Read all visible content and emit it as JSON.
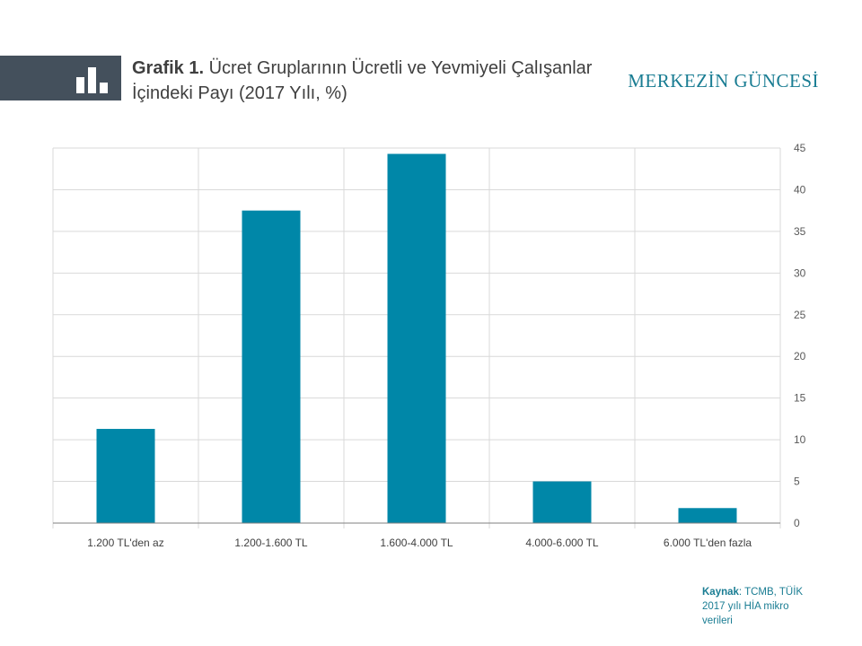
{
  "header": {
    "title_lead": "Grafik 1.",
    "title_rest": "Ücret Gruplarının  Ücretli ve Yevmiyeli Çalışanlar İçindeki Payı (2017 Yılı, %)",
    "brand": "MERKEZİN GÜNCESİ",
    "icon": "bar-chart-icon"
  },
  "source": {
    "label": "Kaynak",
    "text": ": TCMB, TÜİK 2017 yılı HİA mikro verileri"
  },
  "colors": {
    "bar": "#0087a8",
    "header_block": "#44505c",
    "brand": "#1a7d93"
  },
  "chart_data": {
    "type": "bar",
    "categories": [
      "1.200 TL'den az",
      "1.200-1.600 TL",
      "1.600-4.000 TL",
      "4.000-6.000 TL",
      "6.000 TL'den fazla"
    ],
    "values": [
      11.3,
      37.5,
      44.3,
      5.0,
      1.8
    ],
    "title": "",
    "xlabel": "",
    "ylabel": "",
    "ylim": [
      0,
      45
    ],
    "yticks": [
      0,
      5,
      10,
      15,
      20,
      25,
      30,
      35,
      40,
      45
    ],
    "y_axis_side": "right",
    "grid": true
  }
}
